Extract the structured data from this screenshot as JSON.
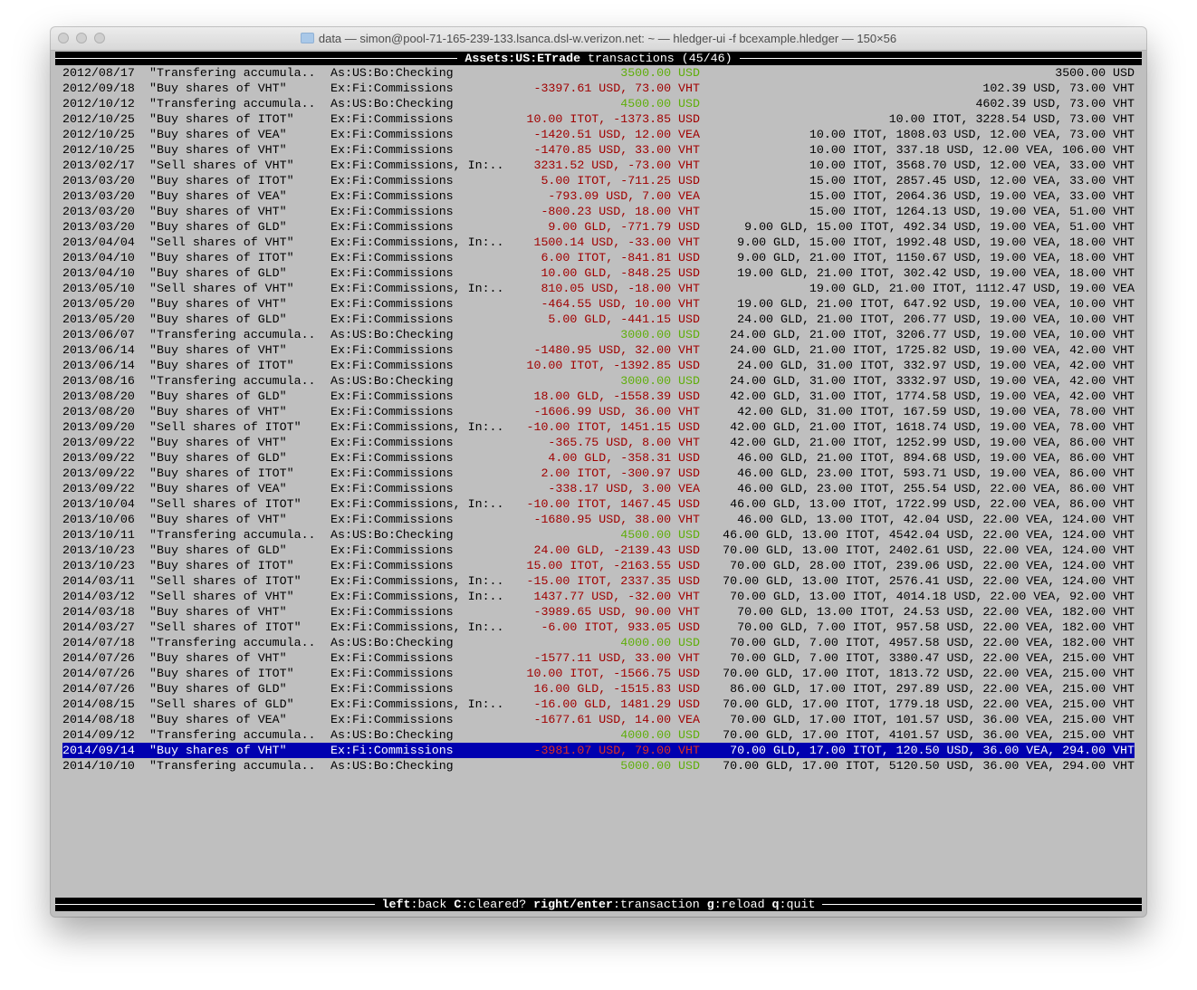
{
  "window": {
    "title": "data — simon@pool-71-165-239-133.lsanca.dsl-w.verizon.net: ~ — hledger-ui -f bcexample.hledger — 150×56"
  },
  "header": {
    "account": "Assets:US:ETrade",
    "suffix": " transactions (45/46)"
  },
  "colors": {
    "positive": "#5fae0a",
    "negative": "#a00000",
    "selection": "#0000b0",
    "background": "#bfbfbf"
  },
  "selected_index": 44,
  "rows": [
    [
      "2012/08/17",
      "\"Transfering accumula..",
      "As:US:Bo:Checking",
      "3500.00 USD",
      "3500.00 USD",
      true
    ],
    [
      "2012/09/18",
      "\"Buy shares of VHT\"",
      "Ex:Fi:Commissions",
      "-3397.61 USD, 73.00 VHT",
      "102.39 USD, 73.00 VHT",
      false
    ],
    [
      "2012/10/12",
      "\"Transfering accumula..",
      "As:US:Bo:Checking",
      "4500.00 USD",
      "4602.39 USD, 73.00 VHT",
      true
    ],
    [
      "2012/10/25",
      "\"Buy shares of ITOT\"",
      "Ex:Fi:Commissions",
      "10.00 ITOT, -1373.85 USD",
      "10.00 ITOT, 3228.54 USD, 73.00 VHT",
      false
    ],
    [
      "2012/10/25",
      "\"Buy shares of VEA\"",
      "Ex:Fi:Commissions",
      "-1420.51 USD, 12.00 VEA",
      "10.00 ITOT, 1808.03 USD, 12.00 VEA, 73.00 VHT",
      false
    ],
    [
      "2012/10/25",
      "\"Buy shares of VHT\"",
      "Ex:Fi:Commissions",
      "-1470.85 USD, 33.00 VHT",
      "10.00 ITOT, 337.18 USD, 12.00 VEA, 106.00 VHT",
      false
    ],
    [
      "2013/02/17",
      "\"Sell shares of VHT\"",
      "Ex:Fi:Commissions, In:..",
      "3231.52 USD, -73.00 VHT",
      "10.00 ITOT, 3568.70 USD, 12.00 VEA, 33.00 VHT",
      false
    ],
    [
      "2013/03/20",
      "\"Buy shares of ITOT\"",
      "Ex:Fi:Commissions",
      "5.00 ITOT, -711.25 USD",
      "15.00 ITOT, 2857.45 USD, 12.00 VEA, 33.00 VHT",
      false
    ],
    [
      "2013/03/20",
      "\"Buy shares of VEA\"",
      "Ex:Fi:Commissions",
      "-793.09 USD, 7.00 VEA",
      "15.00 ITOT, 2064.36 USD, 19.00 VEA, 33.00 VHT",
      false
    ],
    [
      "2013/03/20",
      "\"Buy shares of VHT\"",
      "Ex:Fi:Commissions",
      "-800.23 USD, 18.00 VHT",
      "15.00 ITOT, 1264.13 USD, 19.00 VEA, 51.00 VHT",
      false
    ],
    [
      "2013/03/20",
      "\"Buy shares of GLD\"",
      "Ex:Fi:Commissions",
      "9.00 GLD, -771.79 USD",
      "9.00 GLD, 15.00 ITOT, 492.34 USD, 19.00 VEA, 51.00 VHT",
      false
    ],
    [
      "2013/04/04",
      "\"Sell shares of VHT\"",
      "Ex:Fi:Commissions, In:..",
      "1500.14 USD, -33.00 VHT",
      "9.00 GLD, 15.00 ITOT, 1992.48 USD, 19.00 VEA, 18.00 VHT",
      false
    ],
    [
      "2013/04/10",
      "\"Buy shares of ITOT\"",
      "Ex:Fi:Commissions",
      "6.00 ITOT, -841.81 USD",
      "9.00 GLD, 21.00 ITOT, 1150.67 USD, 19.00 VEA, 18.00 VHT",
      false
    ],
    [
      "2013/04/10",
      "\"Buy shares of GLD\"",
      "Ex:Fi:Commissions",
      "10.00 GLD, -848.25 USD",
      "19.00 GLD, 21.00 ITOT, 302.42 USD, 19.00 VEA, 18.00 VHT",
      false
    ],
    [
      "2013/05/10",
      "\"Sell shares of VHT\"",
      "Ex:Fi:Commissions, In:..",
      "810.05 USD, -18.00 VHT",
      "19.00 GLD, 21.00 ITOT, 1112.47 USD, 19.00 VEA",
      false
    ],
    [
      "2013/05/20",
      "\"Buy shares of VHT\"",
      "Ex:Fi:Commissions",
      "-464.55 USD, 10.00 VHT",
      "19.00 GLD, 21.00 ITOT, 647.92 USD, 19.00 VEA, 10.00 VHT",
      false
    ],
    [
      "2013/05/20",
      "\"Buy shares of GLD\"",
      "Ex:Fi:Commissions",
      "5.00 GLD, -441.15 USD",
      "24.00 GLD, 21.00 ITOT, 206.77 USD, 19.00 VEA, 10.00 VHT",
      false
    ],
    [
      "2013/06/07",
      "\"Transfering accumula..",
      "As:US:Bo:Checking",
      "3000.00 USD",
      "24.00 GLD, 21.00 ITOT, 3206.77 USD, 19.00 VEA, 10.00 VHT",
      true
    ],
    [
      "2013/06/14",
      "\"Buy shares of VHT\"",
      "Ex:Fi:Commissions",
      "-1480.95 USD, 32.00 VHT",
      "24.00 GLD, 21.00 ITOT, 1725.82 USD, 19.00 VEA, 42.00 VHT",
      false
    ],
    [
      "2013/06/14",
      "\"Buy shares of ITOT\"",
      "Ex:Fi:Commissions",
      "10.00 ITOT, -1392.85 USD",
      "24.00 GLD, 31.00 ITOT, 332.97 USD, 19.00 VEA, 42.00 VHT",
      false
    ],
    [
      "2013/08/16",
      "\"Transfering accumula..",
      "As:US:Bo:Checking",
      "3000.00 USD",
      "24.00 GLD, 31.00 ITOT, 3332.97 USD, 19.00 VEA, 42.00 VHT",
      true
    ],
    [
      "2013/08/20",
      "\"Buy shares of GLD\"",
      "Ex:Fi:Commissions",
      "18.00 GLD, -1558.39 USD",
      "42.00 GLD, 31.00 ITOT, 1774.58 USD, 19.00 VEA, 42.00 VHT",
      false
    ],
    [
      "2013/08/20",
      "\"Buy shares of VHT\"",
      "Ex:Fi:Commissions",
      "-1606.99 USD, 36.00 VHT",
      "42.00 GLD, 31.00 ITOT, 167.59 USD, 19.00 VEA, 78.00 VHT",
      false
    ],
    [
      "2013/09/20",
      "\"Sell shares of ITOT\"",
      "Ex:Fi:Commissions, In:..",
      "-10.00 ITOT, 1451.15 USD",
      "42.00 GLD, 21.00 ITOT, 1618.74 USD, 19.00 VEA, 78.00 VHT",
      false
    ],
    [
      "2013/09/22",
      "\"Buy shares of VHT\"",
      "Ex:Fi:Commissions",
      "-365.75 USD, 8.00 VHT",
      "42.00 GLD, 21.00 ITOT, 1252.99 USD, 19.00 VEA, 86.00 VHT",
      false
    ],
    [
      "2013/09/22",
      "\"Buy shares of GLD\"",
      "Ex:Fi:Commissions",
      "4.00 GLD, -358.31 USD",
      "46.00 GLD, 21.00 ITOT, 894.68 USD, 19.00 VEA, 86.00 VHT",
      false
    ],
    [
      "2013/09/22",
      "\"Buy shares of ITOT\"",
      "Ex:Fi:Commissions",
      "2.00 ITOT, -300.97 USD",
      "46.00 GLD, 23.00 ITOT, 593.71 USD, 19.00 VEA, 86.00 VHT",
      false
    ],
    [
      "2013/09/22",
      "\"Buy shares of VEA\"",
      "Ex:Fi:Commissions",
      "-338.17 USD, 3.00 VEA",
      "46.00 GLD, 23.00 ITOT, 255.54 USD, 22.00 VEA, 86.00 VHT",
      false
    ],
    [
      "2013/10/04",
      "\"Sell shares of ITOT\"",
      "Ex:Fi:Commissions, In:..",
      "-10.00 ITOT, 1467.45 USD",
      "46.00 GLD, 13.00 ITOT, 1722.99 USD, 22.00 VEA, 86.00 VHT",
      false
    ],
    [
      "2013/10/06",
      "\"Buy shares of VHT\"",
      "Ex:Fi:Commissions",
      "-1680.95 USD, 38.00 VHT",
      "46.00 GLD, 13.00 ITOT, 42.04 USD, 22.00 VEA, 124.00 VHT",
      false
    ],
    [
      "2013/10/11",
      "\"Transfering accumula..",
      "As:US:Bo:Checking",
      "4500.00 USD",
      "46.00 GLD, 13.00 ITOT, 4542.04 USD, 22.00 VEA, 124.00 VHT",
      true
    ],
    [
      "2013/10/23",
      "\"Buy shares of GLD\"",
      "Ex:Fi:Commissions",
      "24.00 GLD, -2139.43 USD",
      "70.00 GLD, 13.00 ITOT, 2402.61 USD, 22.00 VEA, 124.00 VHT",
      false
    ],
    [
      "2013/10/23",
      "\"Buy shares of ITOT\"",
      "Ex:Fi:Commissions",
      "15.00 ITOT, -2163.55 USD",
      "70.00 GLD, 28.00 ITOT, 239.06 USD, 22.00 VEA, 124.00 VHT",
      false
    ],
    [
      "2014/03/11",
      "\"Sell shares of ITOT\"",
      "Ex:Fi:Commissions, In:..",
      "-15.00 ITOT, 2337.35 USD",
      "70.00 GLD, 13.00 ITOT, 2576.41 USD, 22.00 VEA, 124.00 VHT",
      false
    ],
    [
      "2014/03/12",
      "\"Sell shares of VHT\"",
      "Ex:Fi:Commissions, In:..",
      "1437.77 USD, -32.00 VHT",
      "70.00 GLD, 13.00 ITOT, 4014.18 USD, 22.00 VEA, 92.00 VHT",
      false
    ],
    [
      "2014/03/18",
      "\"Buy shares of VHT\"",
      "Ex:Fi:Commissions",
      "-3989.65 USD, 90.00 VHT",
      "70.00 GLD, 13.00 ITOT, 24.53 USD, 22.00 VEA, 182.00 VHT",
      false
    ],
    [
      "2014/03/27",
      "\"Sell shares of ITOT\"",
      "Ex:Fi:Commissions, In:..",
      "-6.00 ITOT, 933.05 USD",
      "70.00 GLD, 7.00 ITOT, 957.58 USD, 22.00 VEA, 182.00 VHT",
      false
    ],
    [
      "2014/07/18",
      "\"Transfering accumula..",
      "As:US:Bo:Checking",
      "4000.00 USD",
      "70.00 GLD, 7.00 ITOT, 4957.58 USD, 22.00 VEA, 182.00 VHT",
      true
    ],
    [
      "2014/07/26",
      "\"Buy shares of VHT\"",
      "Ex:Fi:Commissions",
      "-1577.11 USD, 33.00 VHT",
      "70.00 GLD, 7.00 ITOT, 3380.47 USD, 22.00 VEA, 215.00 VHT",
      false
    ],
    [
      "2014/07/26",
      "\"Buy shares of ITOT\"",
      "Ex:Fi:Commissions",
      "10.00 ITOT, -1566.75 USD",
      "70.00 GLD, 17.00 ITOT, 1813.72 USD, 22.00 VEA, 215.00 VHT",
      false
    ],
    [
      "2014/07/26",
      "\"Buy shares of GLD\"",
      "Ex:Fi:Commissions",
      "16.00 GLD, -1515.83 USD",
      "86.00 GLD, 17.00 ITOT, 297.89 USD, 22.00 VEA, 215.00 VHT",
      false
    ],
    [
      "2014/08/15",
      "\"Sell shares of GLD\"",
      "Ex:Fi:Commissions, In:..",
      "-16.00 GLD, 1481.29 USD",
      "70.00 GLD, 17.00 ITOT, 1779.18 USD, 22.00 VEA, 215.00 VHT",
      false
    ],
    [
      "2014/08/18",
      "\"Buy shares of VEA\"",
      "Ex:Fi:Commissions",
      "-1677.61 USD, 14.00 VEA",
      "70.00 GLD, 17.00 ITOT, 101.57 USD, 36.00 VEA, 215.00 VHT",
      false
    ],
    [
      "2014/09/12",
      "\"Transfering accumula..",
      "As:US:Bo:Checking",
      "4000.00 USD",
      "70.00 GLD, 17.00 ITOT, 4101.57 USD, 36.00 VEA, 215.00 VHT",
      true
    ],
    [
      "2014/09/14",
      "\"Buy shares of VHT\"",
      "Ex:Fi:Commissions",
      "-3981.07 USD, 79.00 VHT",
      "70.00 GLD, 17.00 ITOT, 120.50 USD, 36.00 VEA, 294.00 VHT",
      false
    ],
    [
      "2014/10/10",
      "\"Transfering accumula..",
      "As:US:Bo:Checking",
      "5000.00 USD",
      "70.00 GLD, 17.00 ITOT, 5120.50 USD, 36.00 VEA, 294.00 VHT",
      true
    ]
  ],
  "footer": {
    "keys": [
      {
        "key": "left",
        "action": "back"
      },
      {
        "key": "C",
        "action": "cleared?"
      },
      {
        "key": "right/enter",
        "action": "transaction"
      },
      {
        "key": "g",
        "action": "reload"
      },
      {
        "key": "q",
        "action": "quit"
      }
    ]
  }
}
